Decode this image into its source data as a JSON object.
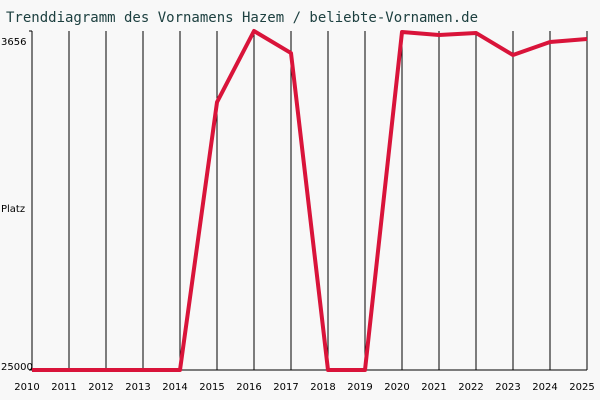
{
  "chart_data": {
    "type": "line",
    "title": "Trenddiagramm des Vornamens Hazem / beliebte-Vornamen.de",
    "y_label": "Platz",
    "x": [
      2010,
      2011,
      2012,
      2013,
      2014,
      2015,
      2016,
      2017,
      2018,
      2019,
      2020,
      2021,
      2022,
      2023,
      2024,
      2025
    ],
    "series": [
      {
        "name": "Hazem",
        "color": "#d9143a",
        "values": [
          25000,
          25000,
          25000,
          25000,
          25000,
          8140,
          3656,
          5045,
          25000,
          25000,
          3720,
          3910,
          3780,
          5170,
          4350,
          4160
        ]
      }
    ],
    "xlim": [
      2010,
      2025
    ],
    "xticks": [
      2010,
      2011,
      2012,
      2013,
      2014,
      2015,
      2016,
      2017,
      2018,
      2019,
      2020,
      2021,
      2022,
      2023,
      2024,
      2025
    ],
    "ylim": [
      25000,
      3656
    ],
    "yticks": [
      3656,
      25000
    ],
    "grid": true
  }
}
